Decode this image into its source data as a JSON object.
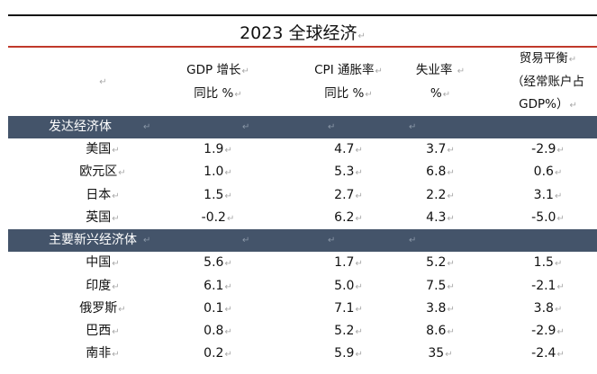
{
  "title": "2023 全球经济",
  "header": {
    "empty_col": "",
    "gdp": [
      "GDP 增长",
      "同比 %"
    ],
    "cpi": [
      "CPI 通胀率",
      "同比 %"
    ],
    "unemployment": [
      "失业率",
      "%"
    ],
    "trade": [
      "贸易平衡",
      "（经常账户占",
      "GDP%）"
    ]
  },
  "colors": {
    "band": "#44546a",
    "title_rule": "#c0392b",
    "top_rule": "#111111"
  },
  "groups": [
    {
      "label": "发达经济体",
      "rows": [
        {
          "name": "美国",
          "gdp": "1.9",
          "cpi": "4.7",
          "unemp": "3.7",
          "trade": "-2.9"
        },
        {
          "name": "欧元区",
          "gdp": "1.0",
          "cpi": "5.3",
          "unemp": "6.8",
          "trade": "0.6"
        },
        {
          "name": "日本",
          "gdp": "1.5",
          "cpi": "2.7",
          "unemp": "2.2",
          "trade": "3.1"
        },
        {
          "name": "英国",
          "gdp": "-0.2",
          "cpi": "6.2",
          "unemp": "4.3",
          "trade": "-5.0"
        }
      ]
    },
    {
      "label": "主要新兴经济体",
      "rows": [
        {
          "name": "中国",
          "gdp": "5.6",
          "cpi": "1.7",
          "unemp": "5.2",
          "trade": "1.5"
        },
        {
          "name": "印度",
          "gdp": "6.1",
          "cpi": "5.0",
          "unemp": "7.5",
          "trade": "-2.1"
        },
        {
          "name": "俄罗斯",
          "gdp": "0.1",
          "cpi": "7.1",
          "unemp": "3.8",
          "trade": "3.8"
        },
        {
          "name": "巴西",
          "gdp": "0.8",
          "cpi": "5.2",
          "unemp": "8.6",
          "trade": "-2.9"
        },
        {
          "name": "南非",
          "gdp": "0.2",
          "cpi": "5.9",
          "unemp": "35",
          "trade": "-2.4"
        }
      ]
    }
  ],
  "return_mark": "↵"
}
